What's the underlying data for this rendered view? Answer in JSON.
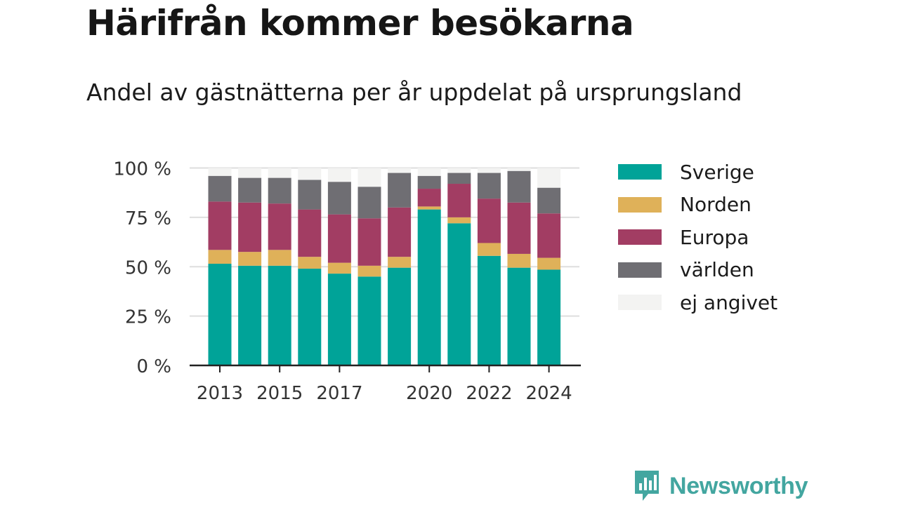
{
  "title": "Härifrån kommer besökarna",
  "subtitle": "Andel av gästnätterna per år uppdelat på ursprungsland",
  "brand": {
    "name": "Newsworthy",
    "logo_icon": "bar-chart-speech-bubble-icon",
    "color": "#43a6a0"
  },
  "chart_data": {
    "type": "bar",
    "stacked": true,
    "title": "Härifrån kommer besökarna",
    "subtitle": "Andel av gästnätterna per år uppdelat på ursprungsland",
    "categories": [
      2013,
      2014,
      2015,
      2016,
      2017,
      2018,
      2019,
      2020,
      2021,
      2022,
      2023,
      2024
    ],
    "x_tick_labels": [
      "2013",
      "2015",
      "2017",
      "2020",
      "2022",
      "2024"
    ],
    "y_ticks": [
      0,
      25,
      50,
      75,
      100
    ],
    "y_tick_labels": [
      "0 %",
      "25 %",
      "50 %",
      "75 %",
      "100 %"
    ],
    "ylim": [
      0,
      100
    ],
    "grid": true,
    "legend_position": "right",
    "series": [
      {
        "name": "Sverige",
        "color": "#00a398",
        "values": [
          51.5,
          50.5,
          50.5,
          49,
          46.5,
          45,
          49.5,
          79,
          72,
          55.5,
          49.5,
          48.5
        ]
      },
      {
        "name": "Norden",
        "color": "#dfb159",
        "values": [
          7,
          7,
          8,
          6,
          5.5,
          5.5,
          5.5,
          1.5,
          3,
          6.5,
          7,
          6
        ]
      },
      {
        "name": "Europa",
        "color": "#a23d63",
        "values": [
          24.5,
          25,
          23.5,
          24,
          24.5,
          24,
          25,
          9,
          17,
          22.5,
          26,
          22.5
        ]
      },
      {
        "name": "världen",
        "color": "#6f6e73",
        "values": [
          13,
          12.5,
          13,
          15,
          16.5,
          16,
          17.5,
          6.5,
          5.5,
          13,
          16,
          13
        ]
      },
      {
        "name": "ej angivet",
        "color": "#f3f3f2",
        "values": [
          4,
          5,
          5,
          6,
          7,
          9.5,
          2.5,
          4,
          2.5,
          2.5,
          1.5,
          10
        ]
      }
    ]
  }
}
